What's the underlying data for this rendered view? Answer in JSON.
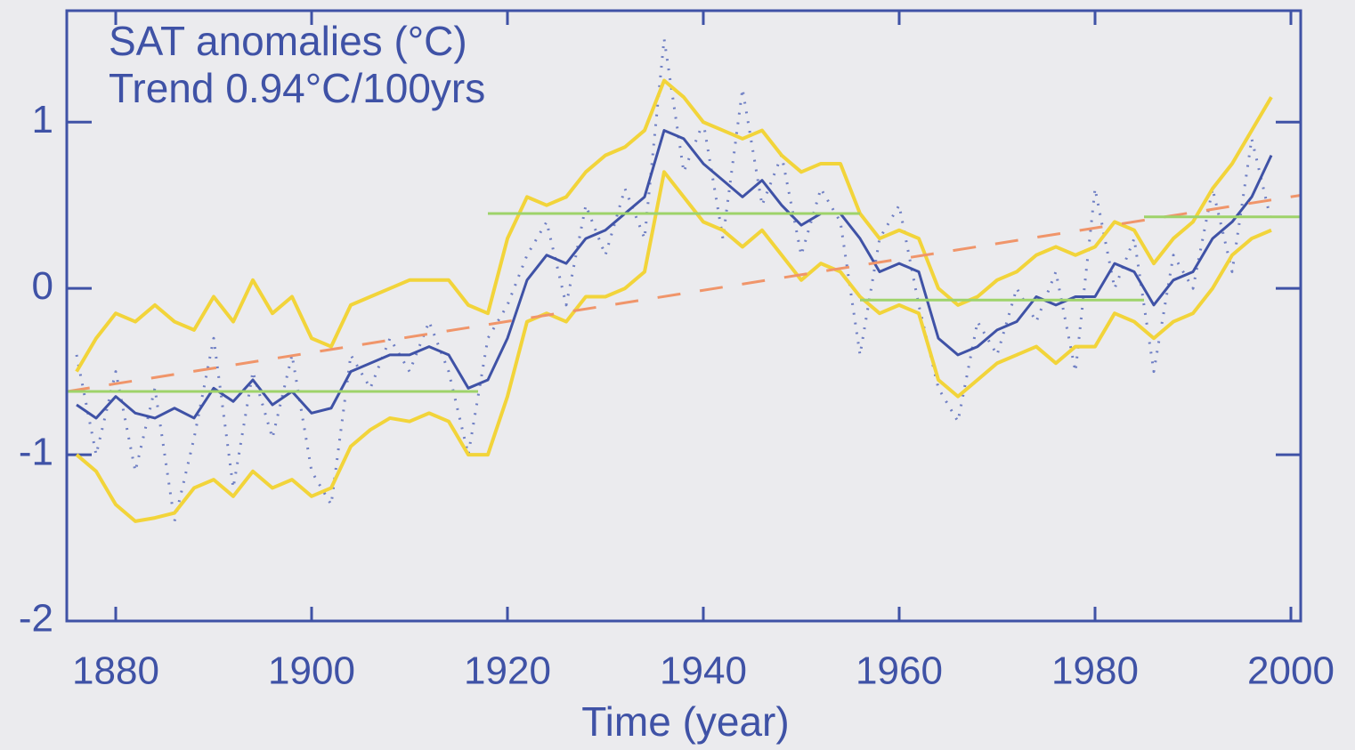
{
  "chart_data": {
    "type": "line",
    "annotations": [
      "SAT anomalies (°C)",
      "Trend 0.94°C/100yrs"
    ],
    "xlabel": "Time (year)",
    "xlim": [
      1875,
      2001
    ],
    "ylim": [
      -2,
      1.67
    ],
    "xticks": [
      1880,
      1900,
      1920,
      1940,
      1960,
      1980,
      2000
    ],
    "yticks": [
      -2,
      -1,
      0,
      1
    ],
    "axis_color": "#3f52a6",
    "x": [
      1876,
      1878,
      1880,
      1882,
      1884,
      1886,
      1888,
      1890,
      1892,
      1894,
      1896,
      1898,
      1900,
      1902,
      1904,
      1906,
      1908,
      1910,
      1912,
      1914,
      1916,
      1918,
      1920,
      1922,
      1924,
      1926,
      1928,
      1930,
      1932,
      1934,
      1936,
      1938,
      1940,
      1942,
      1944,
      1946,
      1948,
      1950,
      1952,
      1954,
      1956,
      1958,
      1960,
      1962,
      1964,
      1966,
      1968,
      1970,
      1972,
      1974,
      1976,
      1978,
      1980,
      1982,
      1984,
      1986,
      1988,
      1990,
      1992,
      1994,
      1996,
      1998
    ],
    "series": [
      {
        "color": "#6f7fc4",
        "style": "dotted",
        "width": 3,
        "values": [
          -0.4,
          -1.0,
          -0.5,
          -1.1,
          -0.6,
          -1.4,
          -0.9,
          -0.3,
          -1.2,
          -0.5,
          -0.9,
          -0.4,
          -1.1,
          -1.3,
          -0.4,
          -0.6,
          -0.3,
          -0.5,
          -0.2,
          -0.5,
          -1.0,
          -0.3,
          -0.1,
          0.2,
          0.4,
          -0.1,
          0.5,
          0.2,
          0.6,
          0.3,
          1.5,
          0.7,
          1.0,
          0.3,
          1.2,
          0.5,
          0.8,
          0.2,
          0.6,
          0.4,
          -0.4,
          0.3,
          0.5,
          -0.1,
          -0.6,
          -0.8,
          -0.2,
          -0.4,
          0.0,
          -0.2,
          0.1,
          -0.5,
          0.6,
          0.0,
          0.3,
          -0.5,
          0.2,
          0.0,
          0.6,
          0.1,
          0.9,
          0.4
        ]
      },
      {
        "color": "#f2d43a",
        "style": "solid",
        "width": 4,
        "values": [
          -0.5,
          -0.3,
          -0.15,
          -0.2,
          -0.1,
          -0.2,
          -0.25,
          -0.05,
          -0.2,
          0.05,
          -0.15,
          -0.05,
          -0.3,
          -0.35,
          -0.1,
          -0.05,
          0.0,
          0.05,
          0.05,
          0.05,
          -0.1,
          -0.15,
          0.3,
          0.55,
          0.5,
          0.55,
          0.7,
          0.8,
          0.85,
          0.95,
          1.25,
          1.15,
          1.0,
          0.95,
          0.9,
          0.95,
          0.8,
          0.7,
          0.75,
          0.75,
          0.45,
          0.3,
          0.35,
          0.3,
          0.0,
          -0.1,
          -0.05,
          0.05,
          0.1,
          0.2,
          0.25,
          0.2,
          0.25,
          0.4,
          0.35,
          0.15,
          0.3,
          0.4,
          0.6,
          0.75,
          0.95,
          1.15
        ]
      },
      {
        "color": "#f2d43a",
        "style": "solid",
        "width": 4,
        "values": [
          -1.0,
          -1.1,
          -1.3,
          -1.4,
          -1.38,
          -1.35,
          -1.2,
          -1.15,
          -1.25,
          -1.1,
          -1.2,
          -1.15,
          -1.25,
          -1.2,
          -0.95,
          -0.85,
          -0.78,
          -0.8,
          -0.75,
          -0.8,
          -1.0,
          -1.0,
          -0.65,
          -0.2,
          -0.15,
          -0.2,
          -0.05,
          -0.05,
          0.0,
          0.1,
          0.7,
          0.55,
          0.4,
          0.35,
          0.25,
          0.35,
          0.2,
          0.05,
          0.15,
          0.1,
          -0.05,
          -0.15,
          -0.1,
          -0.15,
          -0.55,
          -0.65,
          -0.55,
          -0.45,
          -0.4,
          -0.35,
          -0.45,
          -0.35,
          -0.35,
          -0.15,
          -0.2,
          -0.3,
          -0.2,
          -0.15,
          0.0,
          0.2,
          0.3,
          0.35
        ]
      },
      {
        "color": "#3f52a6",
        "style": "solid",
        "width": 3,
        "values": [
          -0.7,
          -0.78,
          -0.65,
          -0.75,
          -0.78,
          -0.72,
          -0.78,
          -0.6,
          -0.68,
          -0.55,
          -0.7,
          -0.62,
          -0.75,
          -0.72,
          -0.5,
          -0.45,
          -0.4,
          -0.4,
          -0.35,
          -0.4,
          -0.6,
          -0.55,
          -0.3,
          0.05,
          0.2,
          0.15,
          0.3,
          0.35,
          0.45,
          0.55,
          0.95,
          0.9,
          0.75,
          0.65,
          0.55,
          0.65,
          0.5,
          0.38,
          0.45,
          0.45,
          0.3,
          0.1,
          0.15,
          0.1,
          -0.3,
          -0.4,
          -0.35,
          -0.25,
          -0.2,
          -0.05,
          -0.1,
          -0.05,
          -0.05,
          0.15,
          0.1,
          -0.1,
          0.05,
          0.1,
          0.3,
          0.4,
          0.55,
          0.8
        ]
      },
      {
        "color": "#f0956a",
        "style": "dashed",
        "width": 3,
        "x": [
          1875,
          2001
        ],
        "values": [
          -0.62,
          0.56
        ]
      },
      {
        "color": "#9ed36a",
        "style": "solid",
        "width": 3,
        "x": [
          1875,
          1917
        ],
        "values": [
          -0.62,
          -0.62
        ]
      },
      {
        "color": "#9ed36a",
        "style": "solid",
        "width": 3,
        "x": [
          1918,
          1956
        ],
        "values": [
          0.45,
          0.45
        ]
      },
      {
        "color": "#9ed36a",
        "style": "solid",
        "width": 3,
        "x": [
          1956,
          1985
        ],
        "values": [
          -0.07,
          -0.07
        ]
      },
      {
        "color": "#9ed36a",
        "style": "solid",
        "width": 3,
        "x": [
          1985,
          2001
        ],
        "values": [
          0.43,
          0.43
        ]
      }
    ]
  }
}
